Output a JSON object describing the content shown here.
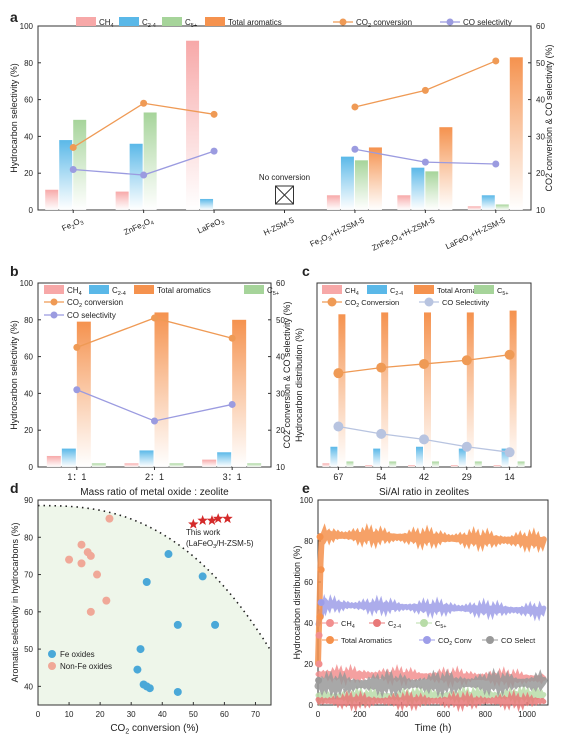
{
  "chart_data": [
    {
      "panel": "a",
      "type": "bar",
      "categories": [
        "Fe2O3",
        "ZnFe2O4",
        "LaFeO3",
        "H-ZSM-5",
        "Fe2O3+H-ZSM-5",
        "ZnFe2O4+H-ZSM-5",
        "LaFeO3+H-ZSM-5"
      ],
      "category_labels": [
        {
          "main": "Fe",
          "sub": "2",
          "main2": "O",
          "sub2": "3",
          "rest": ""
        },
        {
          "main": "ZnFe",
          "sub": "2",
          "main2": "O",
          "sub2": "4",
          "rest": ""
        },
        {
          "main": "LaFeO",
          "sub": "3",
          "main2": "",
          "sub2": "",
          "rest": ""
        },
        {
          "main": "H-ZSM-5",
          "sub": "",
          "main2": "",
          "sub2": "",
          "rest": ""
        },
        {
          "main": "Fe",
          "sub": "2",
          "main2": "O",
          "sub2": "3",
          "rest": "+H-ZSM-5"
        },
        {
          "main": "ZnFe",
          "sub": "2",
          "main2": "O",
          "sub2": "4",
          "rest": "+H-ZSM-5"
        },
        {
          "main": "LaFeO",
          "sub": "3",
          "main2": "",
          "sub2": "",
          "rest": "+H-ZSM-5"
        }
      ],
      "series": [
        {
          "name": "CH4",
          "legend": {
            "main": "CH",
            "sub": "4"
          },
          "color": "#f7a8a8",
          "values": [
            11,
            10,
            92,
            null,
            8,
            8,
            2
          ]
        },
        {
          "name": "C2-4",
          "legend": {
            "main": "C",
            "sub": "2-4"
          },
          "color": "#5ab8e8",
          "values": [
            38,
            36,
            6,
            null,
            29,
            23,
            8
          ]
        },
        {
          "name": "C5+",
          "legend": {
            "main": "C",
            "sub": "5+"
          },
          "color": "#a6d49a",
          "values": [
            49,
            53,
            0,
            null,
            27,
            21,
            3
          ]
        },
        {
          "name": "Total aromatics",
          "legend": {
            "main": "Total aromatics",
            "sub": ""
          },
          "color": "#f5924e",
          "values": [
            0,
            0,
            0,
            null,
            34,
            45,
            83
          ]
        }
      ],
      "lines": [
        {
          "name": "CO2 conversion",
          "legend": {
            "main": "CO",
            "sub": "2",
            "rest": " conversion"
          },
          "color": "#ef9a55",
          "values": [
            27,
            39,
            36,
            null,
            38,
            42.5,
            50.5
          ]
        },
        {
          "name": "CO selectivity",
          "legend": {
            "main": "CO selectivity",
            "sub": "",
            "rest": ""
          },
          "color": "#9b9be0",
          "values": [
            21,
            19.5,
            26,
            null,
            26.5,
            23,
            22.5
          ]
        }
      ],
      "ylabel": "Hydrocarbon selectivity (%)",
      "y2label": "CO2 conversion & CO selectivity (%)",
      "ylim": [
        0,
        100
      ],
      "y2lim": [
        10,
        60
      ],
      "yticks": [
        "0",
        "20",
        "40",
        "60",
        "80",
        "100"
      ],
      "y2ticks": [
        "10",
        "20",
        "30",
        "40",
        "50",
        "60"
      ],
      "annotation": "No conversion",
      "label": "a"
    },
    {
      "panel": "b",
      "type": "bar",
      "categories": [
        "1：1",
        "2：1",
        "3：1"
      ],
      "series": [
        {
          "name": "CH4",
          "legend": {
            "main": "CH",
            "sub": "4"
          },
          "color": "#f7a8a8",
          "values": [
            6,
            2,
            4
          ]
        },
        {
          "name": "C2-4",
          "legend": {
            "main": "C",
            "sub": "2-4"
          },
          "color": "#5ab8e8",
          "values": [
            10,
            9,
            8
          ]
        },
        {
          "name": "Total aromatics",
          "legend": {
            "main": "Total aromatics",
            "sub": ""
          },
          "color": "#f5924e",
          "values": [
            79,
            84,
            80
          ]
        },
        {
          "name": "C5+",
          "legend": {
            "main": "C",
            "sub": "5+"
          },
          "color": "#a6d49a",
          "values": [
            2,
            2,
            2
          ]
        }
      ],
      "lines": [
        {
          "name": "CO2 conversion",
          "legend": {
            "main": "CO",
            "sub": "2",
            "rest": " conversion"
          },
          "color": "#ef9a55",
          "values": [
            42.5,
            50.5,
            45
          ]
        },
        {
          "name": "CO selectivity",
          "legend": {
            "main": "CO selectivity",
            "sub": "",
            "rest": ""
          },
          "color": "#9b9be0",
          "values": [
            31,
            22.5,
            27
          ]
        }
      ],
      "xlabel": "Mass ratio of metal oxide : zeolite",
      "ylabel": "Hydrocarbon selectivity (%)",
      "y2label": "CO2 conversion & CO selectivity (%)",
      "ylim": [
        0,
        100
      ],
      "y2lim": [
        10,
        60
      ],
      "yticks": [
        "0",
        "20",
        "40",
        "60",
        "80",
        "100"
      ],
      "y2ticks": [
        "10",
        "20",
        "30",
        "40",
        "50",
        "60"
      ],
      "label": "b"
    },
    {
      "panel": "c",
      "type": "bar",
      "categories": [
        "67",
        "54",
        "42",
        "29",
        "14"
      ],
      "series": [
        {
          "name": "CH4",
          "legend": {
            "main": "CH",
            "sub": "4"
          },
          "color": "#f7a8a8",
          "values": [
            2,
            1,
            1,
            1,
            1
          ]
        },
        {
          "name": "C2-4",
          "legend": {
            "main": "C",
            "sub": "2-4"
          },
          "color": "#5ab8e8",
          "values": [
            11,
            10,
            11,
            10,
            10
          ]
        },
        {
          "name": "Total Aromatics",
          "legend": {
            "main": "Total Aromatics",
            "sub": ""
          },
          "color": "#f5924e",
          "values": [
            83,
            84,
            84,
            84,
            85
          ]
        },
        {
          "name": "C5+",
          "legend": {
            "main": "C",
            "sub": "5+"
          },
          "color": "#a6d49a",
          "values": [
            3,
            3,
            3,
            3,
            3
          ]
        }
      ],
      "lines": [
        {
          "name": "CO2 Conversion",
          "legend": {
            "main": "CO",
            "sub": "2",
            "rest": " Conversion"
          },
          "color": "#ef9a55",
          "values": [
            51,
            54,
            56,
            58,
            61
          ]
        },
        {
          "name": "CO Selectivity",
          "legend": {
            "main": "CO Selectivity",
            "sub": "",
            "rest": ""
          },
          "color": "#b8c4e0",
          "values": [
            22,
            18,
            15,
            11,
            8
          ]
        }
      ],
      "xlabel": "Si/Al ratio in zeolites",
      "ylabel": "Hydrocarbon distribution (%)",
      "ylim": [
        0,
        100
      ],
      "label": "c"
    },
    {
      "panel": "d",
      "type": "scatter",
      "series": [
        {
          "name": "Fe oxides",
          "color": "#4aa8d8",
          "points": [
            [
              42,
              75.5
            ],
            [
              53,
              69.5
            ],
            [
              35,
              68
            ],
            [
              57,
              56.5
            ],
            [
              45,
              56.5
            ],
            [
              33,
              50
            ],
            [
              32,
              44.5
            ],
            [
              34,
              40.5
            ],
            [
              35,
              40
            ],
            [
              36,
              39.5
            ],
            [
              45,
              38.5
            ]
          ]
        },
        {
          "name": "Non-Fe oxides",
          "color": "#f0a898",
          "points": [
            [
              23,
              85
            ],
            [
              14,
              78
            ],
            [
              10,
              74
            ],
            [
              16,
              76
            ],
            [
              17,
              75
            ],
            [
              14,
              73
            ],
            [
              19,
              70
            ],
            [
              22,
              63
            ],
            [
              17,
              60
            ]
          ]
        },
        {
          "name": "This work",
          "subtitle": "(LaFeO3/H-ZSM-5)",
          "color": "#d42a2a",
          "points": [
            [
              50,
              83.5
            ],
            [
              53,
              84.5
            ],
            [
              56,
              84.5
            ],
            [
              58,
              85
            ],
            [
              61,
              85
            ]
          ]
        }
      ],
      "xlabel": "CO2 conversion (%)",
      "ylabel": "Aromatic selectivity in hydrocarbons (%)",
      "xlim": [
        0,
        75
      ],
      "ylim": [
        35,
        90
      ],
      "xticks": [
        "0",
        "10",
        "20",
        "30",
        "40",
        "50",
        "60",
        "70"
      ],
      "yticks": [
        "40",
        "50",
        "60",
        "70",
        "80",
        "90"
      ],
      "label": "d"
    },
    {
      "panel": "e",
      "type": "scatter",
      "series": [
        {
          "name": "CH4",
          "legend": {
            "main": "CH",
            "sub": "4"
          },
          "color": "#f28f8f",
          "start": 15,
          "end": 13
        },
        {
          "name": "C2-4",
          "legend": {
            "main": "C",
            "sub": "2-4"
          },
          "color": "#e87878",
          "start": 2,
          "end": 2
        },
        {
          "name": "C5+",
          "legend": {
            "main": "C",
            "sub": "5+"
          },
          "color": "#b8dca8",
          "start": 4,
          "end": 5
        },
        {
          "name": "Total Aromatics",
          "legend": {
            "main": "Total Aromatics",
            "sub": ""
          },
          "color": "#f5914c",
          "start": 83,
          "end": 80
        },
        {
          "name": "CO2 Conv",
          "legend": {
            "main": "CO",
            "sub": "2",
            "rest": " Conv"
          },
          "color": "#9d9de8",
          "start": 49,
          "end": 46
        },
        {
          "name": "CO Select",
          "legend": {
            "main": "CO Select",
            "sub": ""
          },
          "color": "#999999",
          "start": 10,
          "end": 11
        }
      ],
      "xlabel": "Time (h)",
      "ylabel": "Hydrocarbon distribution (%)",
      "xlim": [
        0,
        1100
      ],
      "ylim": [
        0,
        100
      ],
      "xticks": [
        "0",
        "200",
        "400",
        "600",
        "800",
        "1000"
      ],
      "yticks": [
        "0",
        "20",
        "40",
        "60",
        "80",
        "100"
      ],
      "label": "e"
    }
  ]
}
